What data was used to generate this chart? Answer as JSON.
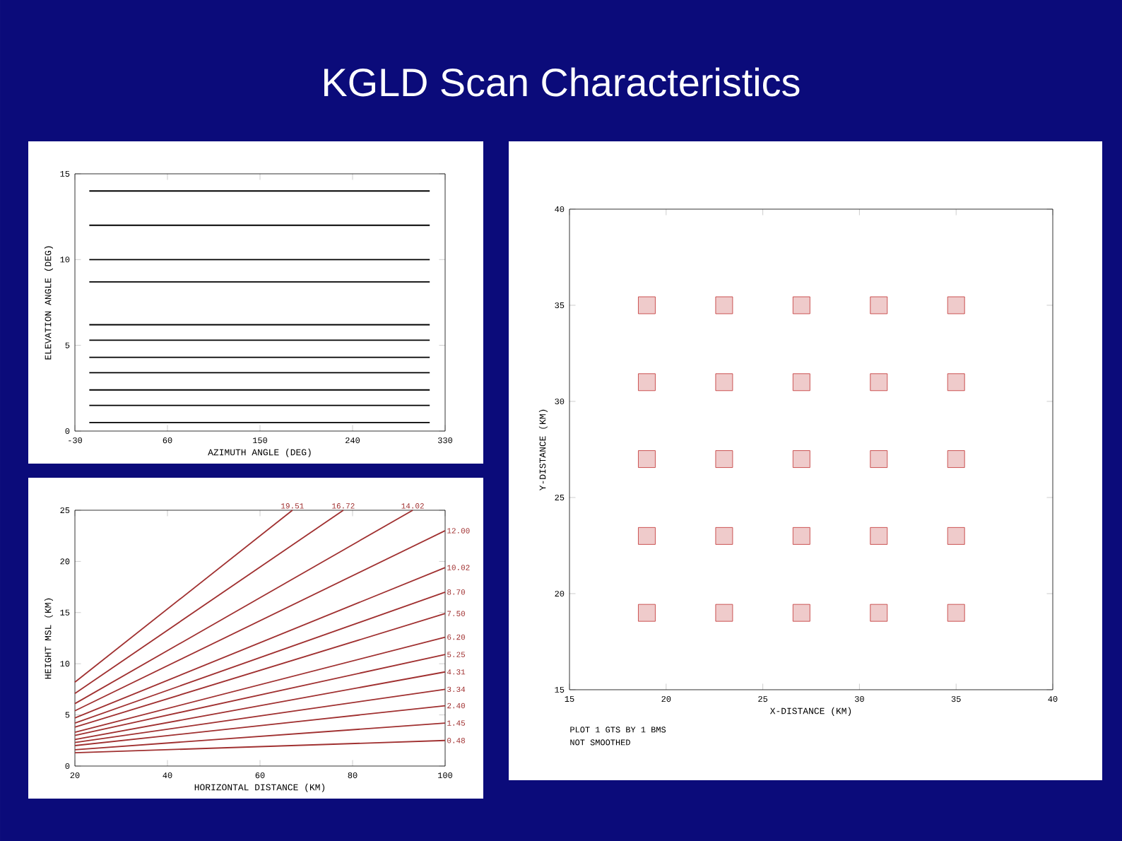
{
  "chart_data": [
    {
      "type": "line",
      "title": "KGLD Scan Characteristics",
      "xlabel": "AZIMUTH ANGLE (DEG)",
      "ylabel": "ELEVATION ANGLE (DEG)",
      "xlim": [
        -30,
        330
      ],
      "ylim": [
        0,
        15
      ],
      "xticks": [
        -30,
        60,
        150,
        240,
        330
      ],
      "yticks": [
        0,
        5,
        10,
        15
      ],
      "line_style": "solid",
      "series": [
        {
          "color": "#000000",
          "x": [
            -16,
            315
          ],
          "values": [
            0.5,
            0.5
          ]
        },
        {
          "color": "#000000",
          "x": [
            -16,
            315
          ],
          "values": [
            1.5,
            1.5
          ]
        },
        {
          "color": "#000000",
          "x": [
            -16,
            315
          ],
          "values": [
            2.4,
            2.4
          ]
        },
        {
          "color": "#000000",
          "x": [
            -16,
            315
          ],
          "values": [
            3.4,
            3.4
          ]
        },
        {
          "color": "#000000",
          "x": [
            -16,
            315
          ],
          "values": [
            4.3,
            4.3
          ]
        },
        {
          "color": "#000000",
          "x": [
            -16,
            315
          ],
          "values": [
            5.3,
            5.3
          ]
        },
        {
          "color": "#000000",
          "x": [
            -16,
            315
          ],
          "values": [
            6.2,
            6.2
          ]
        },
        {
          "color": "#000000",
          "x": [
            -16,
            315
          ],
          "values": [
            8.7,
            8.7
          ]
        },
        {
          "color": "#000000",
          "x": [
            -16,
            315
          ],
          "values": [
            10,
            10
          ]
        },
        {
          "color": "#000000",
          "x": [
            -16,
            315
          ],
          "values": [
            12,
            12
          ]
        },
        {
          "color": "#000000",
          "x": [
            -16,
            315
          ],
          "values": [
            14,
            14
          ]
        }
      ]
    },
    {
      "type": "line",
      "xlabel": "HORIZONTAL DISTANCE (KM)",
      "ylabel": "HEIGHT MSL (KM)",
      "xlim": [
        20,
        100
      ],
      "ylim": [
        0,
        25
      ],
      "xticks": [
        20,
        40,
        60,
        80,
        100
      ],
      "yticks": [
        0,
        5,
        10,
        15,
        20,
        25
      ],
      "line_style": "solid",
      "series": [
        {
          "color": "#a03030",
          "x": [
            20,
            100
          ],
          "values": [
            1.3,
            2.5
          ]
        },
        {
          "color": "#a03030",
          "x": [
            20,
            100
          ],
          "values": [
            1.6,
            4.2
          ]
        },
        {
          "color": "#a03030",
          "x": [
            20,
            100
          ],
          "values": [
            2.0,
            5.9
          ]
        },
        {
          "color": "#a03030",
          "x": [
            20,
            100
          ],
          "values": [
            2.3,
            7.5
          ]
        },
        {
          "color": "#a03030",
          "x": [
            20,
            100
          ],
          "values": [
            2.6,
            9.2
          ]
        },
        {
          "color": "#a03030",
          "x": [
            20,
            100
          ],
          "values": [
            3.0,
            10.9
          ]
        },
        {
          "color": "#a03030",
          "x": [
            20,
            100
          ],
          "values": [
            3.3,
            12.6
          ]
        },
        {
          "color": "#a03030",
          "x": [
            20,
            100
          ],
          "values": [
            3.8,
            14.9
          ]
        },
        {
          "color": "#a03030",
          "x": [
            20,
            100
          ],
          "values": [
            4.2,
            17.0
          ]
        },
        {
          "color": "#a03030",
          "x": [
            20,
            100
          ],
          "values": [
            4.7,
            19.4
          ]
        },
        {
          "color": "#a03030",
          "x": [
            20,
            100
          ],
          "values": [
            5.4,
            23.0
          ]
        },
        {
          "color": "#a03030",
          "x": [
            20,
            93
          ],
          "values": [
            6.1,
            25
          ]
        },
        {
          "color": "#a03030",
          "x": [
            20,
            78
          ],
          "values": [
            7.1,
            25
          ]
        },
        {
          "color": "#a03030",
          "x": [
            20,
            67
          ],
          "values": [
            8.2,
            25
          ]
        }
      ],
      "annotations": [
        {
          "text": "0.48",
          "x": 100,
          "y": 2.5
        },
        {
          "text": "1.45",
          "x": 100,
          "y": 4.2
        },
        {
          "text": "2.40",
          "x": 100,
          "y": 5.9
        },
        {
          "text": "3.34",
          "x": 100,
          "y": 7.5
        },
        {
          "text": "4.31",
          "x": 100,
          "y": 9.2
        },
        {
          "text": "5.25",
          "x": 100,
          "y": 10.9
        },
        {
          "text": "6.20",
          "x": 100,
          "y": 12.6
        },
        {
          "text": "7.50",
          "x": 100,
          "y": 14.9
        },
        {
          "text": "8.70",
          "x": 100,
          "y": 17.0
        },
        {
          "text": "10.02",
          "x": 100,
          "y": 19.4
        },
        {
          "text": "12.00",
          "x": 100,
          "y": 23.0
        },
        {
          "text": "14.02",
          "x": 93,
          "y": 25
        },
        {
          "text": "16.72",
          "x": 78,
          "y": 25
        },
        {
          "text": "19.51",
          "x": 67,
          "y": 25
        }
      ]
    },
    {
      "type": "scatter",
      "xlabel": "X-DISTANCE (KM)",
      "ylabel": "Y-DISTANCE (KM)",
      "xlim": [
        15,
        40
      ],
      "ylim": [
        15,
        40
      ],
      "xticks": [
        15,
        20,
        25,
        30,
        35,
        40
      ],
      "yticks": [
        15,
        20,
        25,
        30,
        35,
        40
      ],
      "marker": "square",
      "series": [
        {
          "color": "#c03030",
          "x": [
            19,
            23,
            27,
            31,
            35,
            19,
            23,
            27,
            31,
            35,
            19,
            23,
            27,
            31,
            35,
            19,
            23,
            27,
            31,
            35,
            19,
            23,
            27,
            31,
            35
          ],
          "values": [
            19,
            19,
            19,
            19,
            19,
            23,
            23,
            23,
            23,
            23,
            27,
            27,
            27,
            27,
            27,
            31,
            31,
            31,
            31,
            31,
            35,
            35,
            35,
            35,
            35
          ]
        }
      ],
      "annotations": [
        "PLOT 1 GTS BY 1 BMS",
        "NOT SMOOTHED"
      ]
    }
  ]
}
